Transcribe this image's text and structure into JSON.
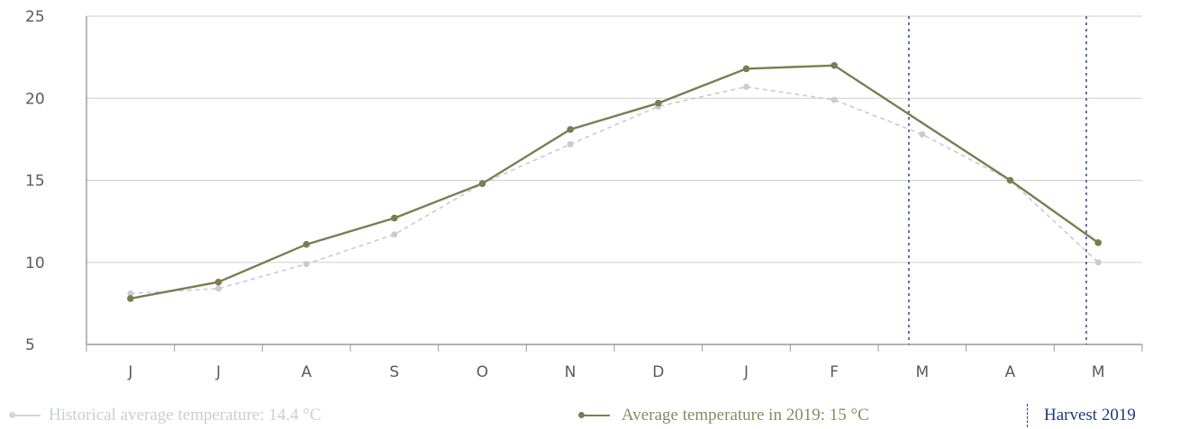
{
  "chart_data": {
    "type": "line",
    "categories": [
      "J",
      "J",
      "A",
      "S",
      "O",
      "N",
      "D",
      "J",
      "F",
      "M",
      "A",
      "M"
    ],
    "yticks": [
      5,
      10,
      15,
      20,
      25
    ],
    "ylim": [
      5,
      25
    ],
    "series": [
      {
        "name": "Historical average temperature: 14.4 °C",
        "values": [
          8.1,
          8.4,
          9.9,
          11.7,
          14.8,
          17.2,
          19.5,
          20.7,
          19.9,
          17.8,
          15.0,
          10.0
        ],
        "color": "#c7cbd3",
        "style": "dashed"
      },
      {
        "name": "Average temperature in 2019: 15 °C",
        "values": [
          7.8,
          8.8,
          11.1,
          12.7,
          14.8,
          18.1,
          19.7,
          21.8,
          22.0,
          null,
          15.0,
          11.2
        ],
        "color": "#7c7c52",
        "style": "solid"
      }
    ],
    "harvest": {
      "label": "Harvest 2019",
      "categories": [
        "M",
        "M"
      ],
      "color": "#2e4590"
    },
    "grid": true,
    "legend_position": "bottom"
  }
}
